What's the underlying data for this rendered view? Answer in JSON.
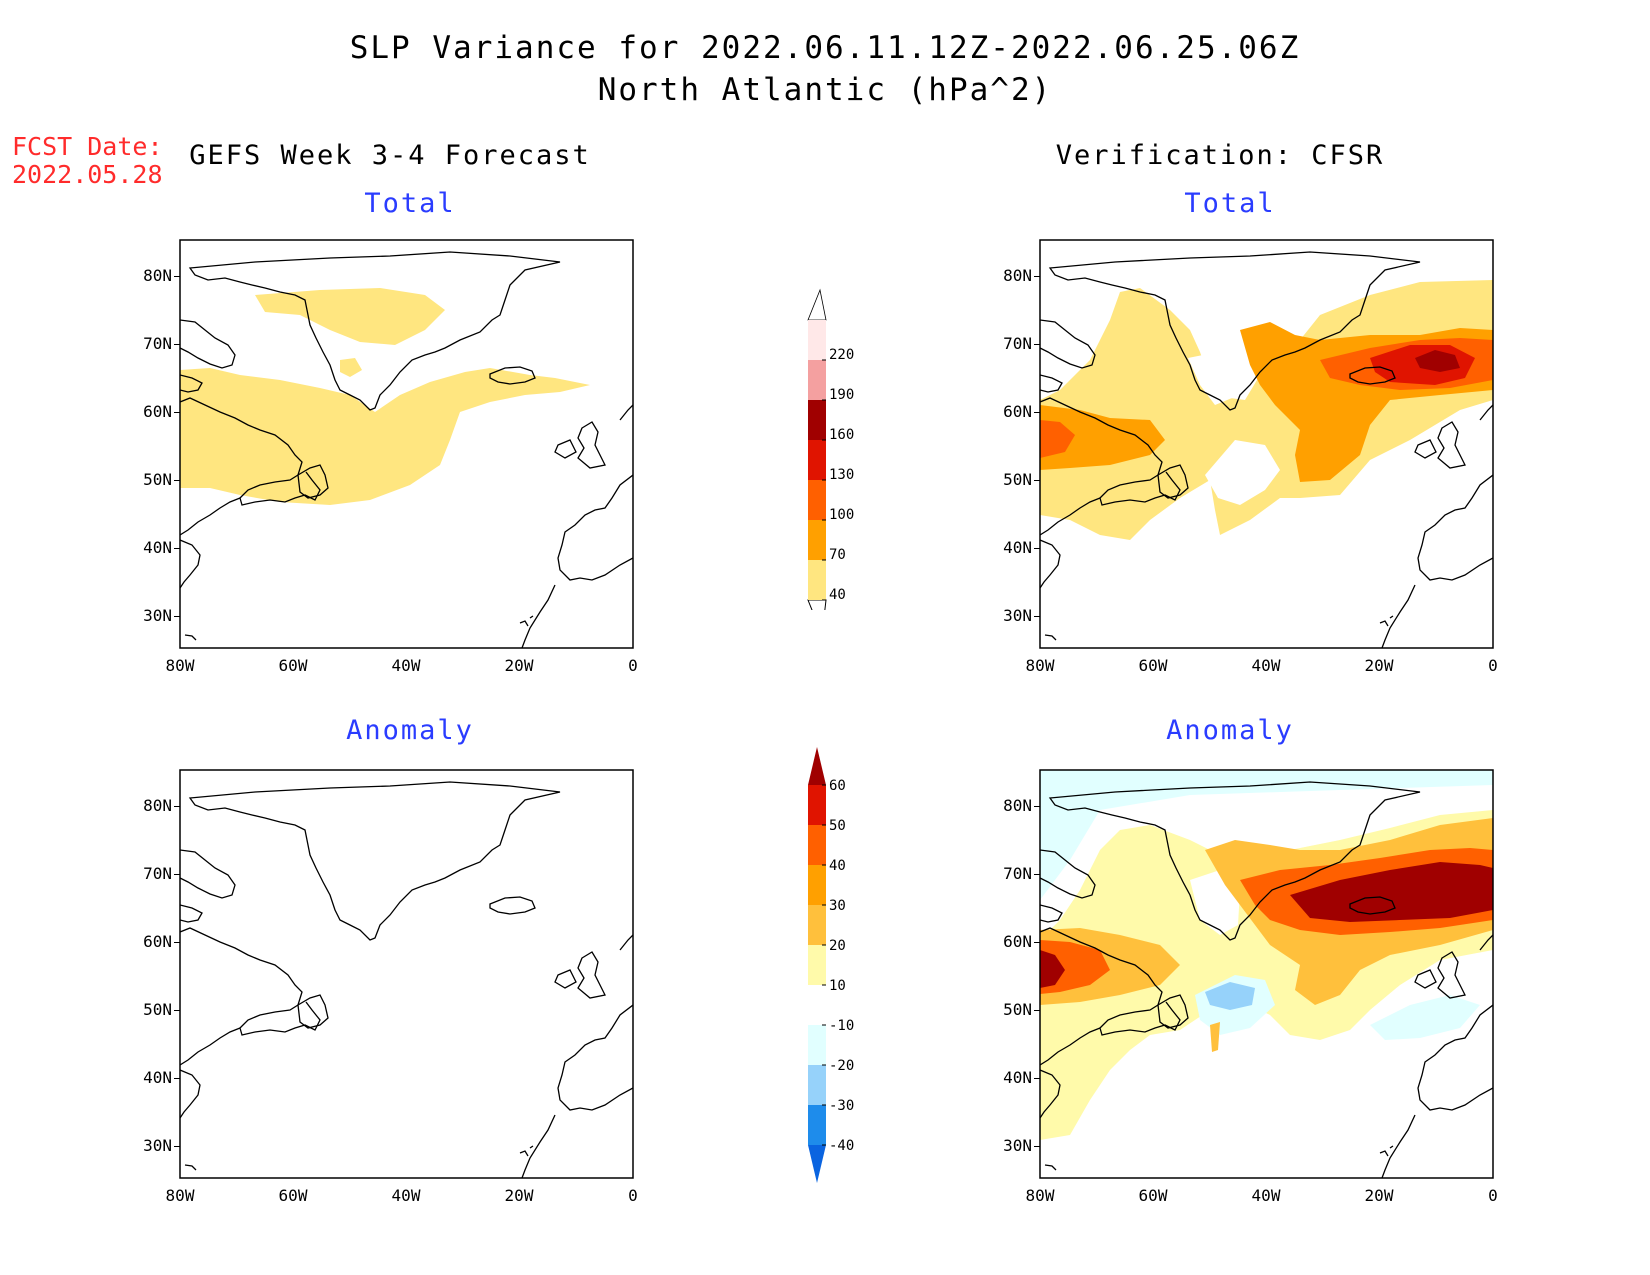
{
  "title": {
    "line1": "SLP Variance for 2022.06.11.12Z-2022.06.25.06Z",
    "line2": "North Atlantic (hPa^2)"
  },
  "fcst": {
    "label": "FCST Date:",
    "date": "2022.05.28"
  },
  "columns": {
    "left": "GEFS Week 3-4 Forecast",
    "right": "Verification: CFSR"
  },
  "panels": {
    "forecast_total": "Total",
    "verification_total": "Total",
    "forecast_anomaly": "Anomaly",
    "verification_anomaly": "Anomaly"
  },
  "axes": {
    "lon_ticks": [
      "80W",
      "60W",
      "40W",
      "20W",
      "0"
    ],
    "lat_ticks": [
      "80N",
      "70N",
      "60N",
      "50N",
      "40N",
      "30N"
    ]
  },
  "colorbars": {
    "total": {
      "levels": [
        "40",
        "70",
        "100",
        "130",
        "160",
        "190",
        "220"
      ],
      "colors": [
        "#ffe680",
        "#ffa000",
        "#ff6000",
        "#e01400",
        "#a00000",
        "#f4a0a0",
        "#ffe8e8"
      ]
    },
    "anomaly": {
      "levels": [
        "-40",
        "-30",
        "-20",
        "-10",
        "10",
        "20",
        "30",
        "40",
        "50",
        "60"
      ],
      "colors": [
        "#0a64e0",
        "#1e8ceb",
        "#96d2fa",
        "#e1ffff",
        "#ffffff",
        "#fffaaa",
        "#ffc03c",
        "#ffa000",
        "#ff6000",
        "#e01400",
        "#a00000"
      ]
    }
  }
}
